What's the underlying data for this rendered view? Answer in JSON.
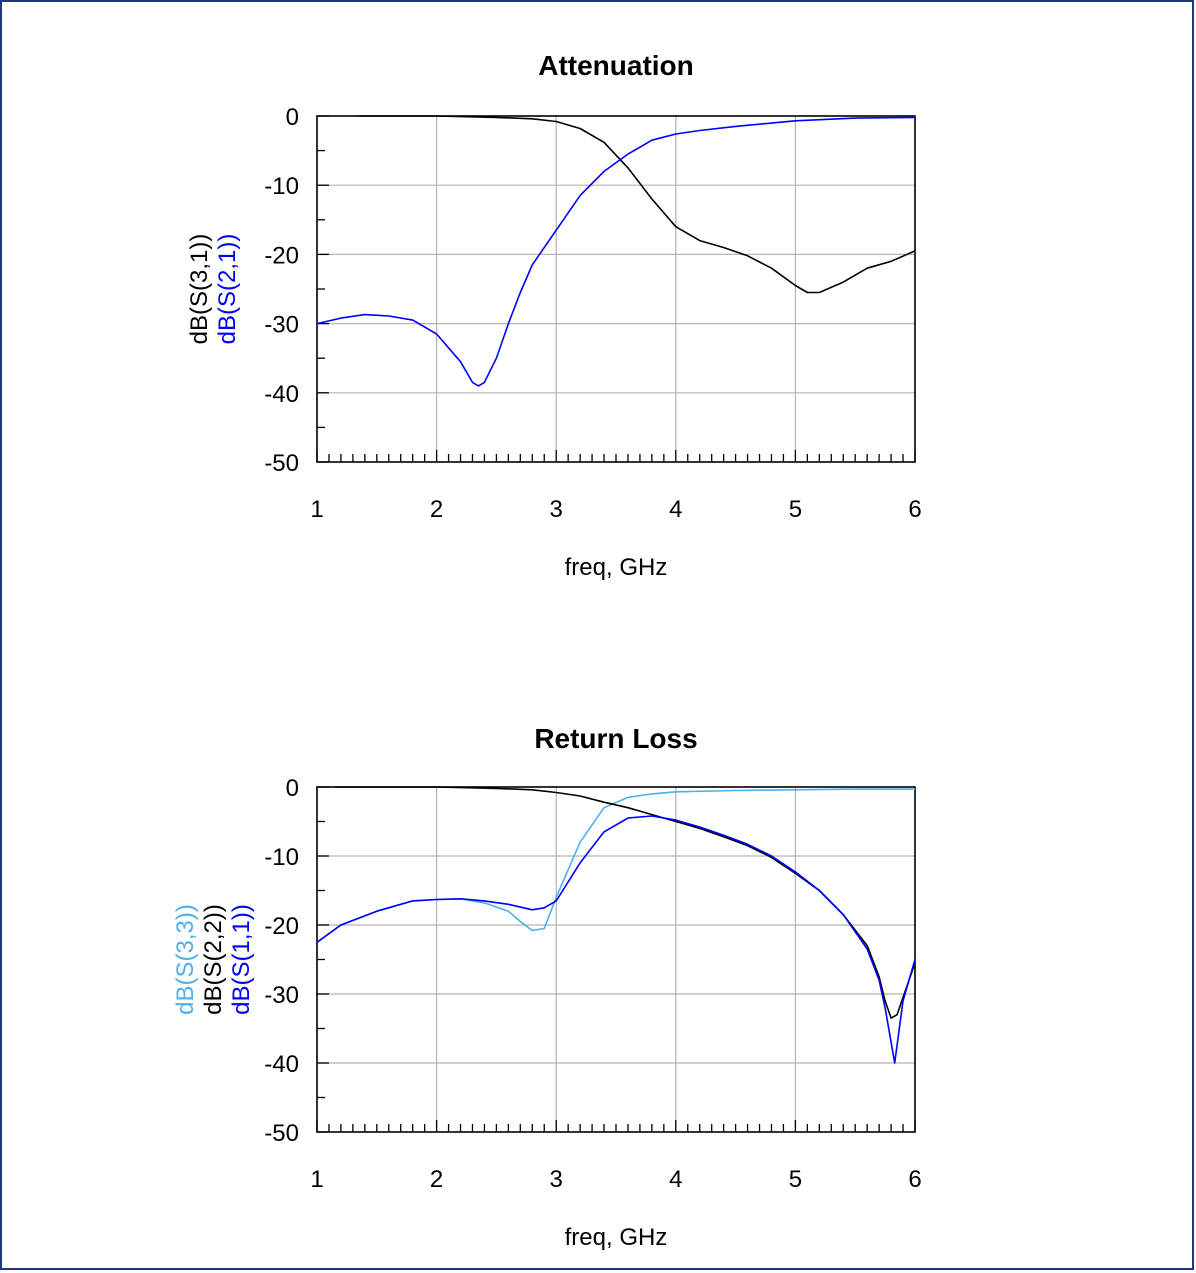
{
  "chart_data": [
    {
      "type": "line",
      "title": "Attenuation",
      "xlabel": "freq, GHz",
      "xlim": [
        1,
        6
      ],
      "ylim": [
        -50,
        0
      ],
      "xticks": [
        "1",
        "2",
        "3",
        "4",
        "5",
        "6"
      ],
      "yticks": [
        "0",
        "-10",
        "-20",
        "-30",
        "-40",
        "-50"
      ],
      "grid": true,
      "series": [
        {
          "name": "dB(S(3,1))",
          "color": "#000000",
          "x": [
            1.35,
            1.5,
            2.0,
            2.5,
            2.8,
            3.0,
            3.2,
            3.4,
            3.6,
            3.8,
            4.0,
            4.2,
            4.4,
            4.6,
            4.8,
            5.0,
            5.1,
            5.2,
            5.4,
            5.6,
            5.8,
            6.0
          ],
          "y": [
            0.0,
            0.0,
            0.0,
            -0.2,
            -0.4,
            -0.8,
            -1.8,
            -3.8,
            -7.5,
            -12.0,
            -16.0,
            -18.0,
            -19.0,
            -20.2,
            -22.0,
            -24.5,
            -25.5,
            -25.5,
            -24.0,
            -22.0,
            -21.0,
            -19.5
          ]
        },
        {
          "name": "dB(S(2,1))",
          "color": "#0000ff",
          "x": [
            1.0,
            1.2,
            1.4,
            1.6,
            1.8,
            2.0,
            2.2,
            2.3,
            2.35,
            2.4,
            2.5,
            2.6,
            2.7,
            2.8,
            3.0,
            3.2,
            3.4,
            3.6,
            3.8,
            4.0,
            4.2,
            4.5,
            5.0,
            5.5,
            6.0
          ],
          "y": [
            -30.0,
            -29.2,
            -28.7,
            -28.9,
            -29.5,
            -31.5,
            -35.5,
            -38.5,
            -39.0,
            -38.5,
            -35.0,
            -30.0,
            -25.5,
            -21.5,
            -16.5,
            -11.5,
            -8.0,
            -5.5,
            -3.5,
            -2.6,
            -2.1,
            -1.5,
            -0.7,
            -0.3,
            -0.2
          ]
        }
      ]
    },
    {
      "type": "line",
      "title": "Return Loss",
      "xlabel": "freq, GHz",
      "xlim": [
        1,
        6
      ],
      "ylim": [
        -50,
        0
      ],
      "xticks": [
        "1",
        "2",
        "3",
        "4",
        "5",
        "6"
      ],
      "yticks": [
        "0",
        "-10",
        "-20",
        "-30",
        "-40",
        "-50"
      ],
      "grid": true,
      "series": [
        {
          "name": "dB(S(3,3))",
          "color": "#4fb0ea",
          "x": [
            1.0,
            1.2,
            1.5,
            1.8,
            2.0,
            2.2,
            2.4,
            2.6,
            2.7,
            2.8,
            2.9,
            3.0,
            3.2,
            3.4,
            3.6,
            3.8,
            4.0,
            4.5,
            5.0,
            5.5,
            6.0
          ],
          "y": [
            -22.5,
            -20.0,
            -18.0,
            -16.5,
            -16.3,
            -16.2,
            -16.8,
            -18.0,
            -19.5,
            -20.8,
            -20.5,
            -16.0,
            -8.0,
            -3.0,
            -1.5,
            -1.0,
            -0.7,
            -0.5,
            -0.4,
            -0.3,
            -0.3
          ]
        },
        {
          "name": "dB(S(2,2))",
          "color": "#000000",
          "x": [
            1.15,
            1.5,
            2.0,
            2.5,
            2.8,
            3.0,
            3.2,
            3.4,
            3.6,
            3.8,
            4.0,
            4.2,
            4.4,
            4.6,
            4.8,
            5.0,
            5.2,
            5.4,
            5.6,
            5.7,
            5.75,
            5.8,
            5.85,
            5.9,
            6.0
          ],
          "y": [
            0.0,
            0.0,
            0.0,
            -0.2,
            -0.4,
            -0.8,
            -1.3,
            -2.2,
            -3.0,
            -4.0,
            -5.0,
            -6.0,
            -7.2,
            -8.5,
            -10.2,
            -12.5,
            -15.0,
            -18.5,
            -23.0,
            -27.5,
            -31.0,
            -33.5,
            -33.0,
            -30.5,
            -25.5
          ]
        },
        {
          "name": "dB(S(1,1))",
          "color": "#0000ff",
          "x": [
            1.0,
            1.2,
            1.5,
            1.8,
            2.0,
            2.2,
            2.4,
            2.6,
            2.8,
            2.9,
            3.0,
            3.2,
            3.4,
            3.6,
            3.8,
            4.0,
            4.2,
            4.4,
            4.6,
            4.8,
            5.0,
            5.2,
            5.4,
            5.6,
            5.7,
            5.75,
            5.8,
            5.83,
            5.9,
            6.0
          ],
          "y": [
            -22.5,
            -20.0,
            -18.0,
            -16.5,
            -16.3,
            -16.2,
            -16.5,
            -17.0,
            -17.8,
            -17.5,
            -16.5,
            -11.0,
            -6.5,
            -4.5,
            -4.2,
            -4.8,
            -5.8,
            -7.0,
            -8.3,
            -10.0,
            -12.3,
            -15.0,
            -18.5,
            -23.5,
            -28.0,
            -32.0,
            -37.0,
            -40.0,
            -31.0,
            -25.0
          ]
        }
      ]
    }
  ]
}
